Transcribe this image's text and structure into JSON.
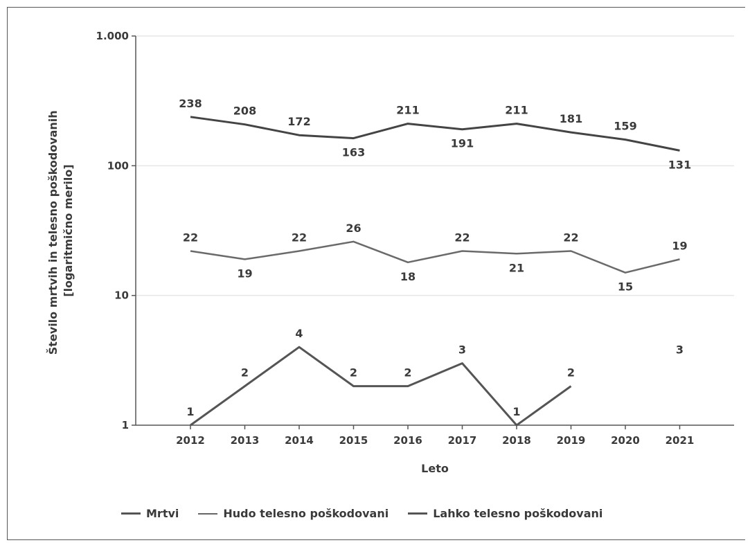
{
  "chart_data": {
    "type": "line",
    "title": "",
    "xlabel": "Leto",
    "ylabel_lines": [
      "Število mrtvih in telesno poškodovanih",
      "[logaritmično merilo]"
    ],
    "yscale": "log",
    "ylim": [
      1,
      1000
    ],
    "yticks": [
      {
        "value": 1,
        "label": "1"
      },
      {
        "value": 10,
        "label": "10"
      },
      {
        "value": 100,
        "label": "100"
      },
      {
        "value": 1000,
        "label": "1.000"
      }
    ],
    "grid": true,
    "legend_position": "bottom",
    "x": [
      "2012",
      "2013",
      "2014",
      "2015",
      "2016",
      "2017",
      "2018",
      "2019",
      "2020",
      "2021"
    ],
    "series": [
      {
        "name": "Mrtvi",
        "key": "mrtvi",
        "color": "#555555",
        "width": 3,
        "values": [
          1,
          2,
          4,
          2,
          2,
          3,
          1,
          2,
          null,
          3
        ],
        "labels": [
          "1",
          "2",
          "4",
          "2",
          "2",
          "3",
          "1",
          "2",
          "",
          "3"
        ],
        "label_pos": [
          "above",
          "above",
          "above",
          "above",
          "above",
          "above",
          "above",
          "above",
          "above",
          "above"
        ]
      },
      {
        "name": "Hudo telesno poškodovani",
        "key": "hudo",
        "color": "#6a6a6a",
        "width": 2.5,
        "values": [
          22,
          19,
          22,
          26,
          18,
          22,
          21,
          22,
          15,
          19
        ],
        "labels": [
          "22",
          "19",
          "22",
          "26",
          "18",
          "22",
          "21",
          "22",
          "15",
          "19"
        ],
        "label_pos": [
          "above",
          "below",
          "above",
          "above",
          "below",
          "above",
          "below",
          "above",
          "below",
          "above"
        ]
      },
      {
        "name": "Lahko telesno poškodovani",
        "key": "lahko",
        "color": "#444444",
        "width": 3,
        "values": [
          238,
          208,
          172,
          163,
          211,
          191,
          211,
          181,
          159,
          131
        ],
        "labels": [
          "238",
          "208",
          "172",
          "163",
          "211",
          "191",
          "211",
          "181",
          "159",
          "131"
        ],
        "label_pos": [
          "above",
          "above",
          "above",
          "below",
          "above",
          "below",
          "above",
          "above",
          "above",
          "below"
        ]
      }
    ]
  }
}
